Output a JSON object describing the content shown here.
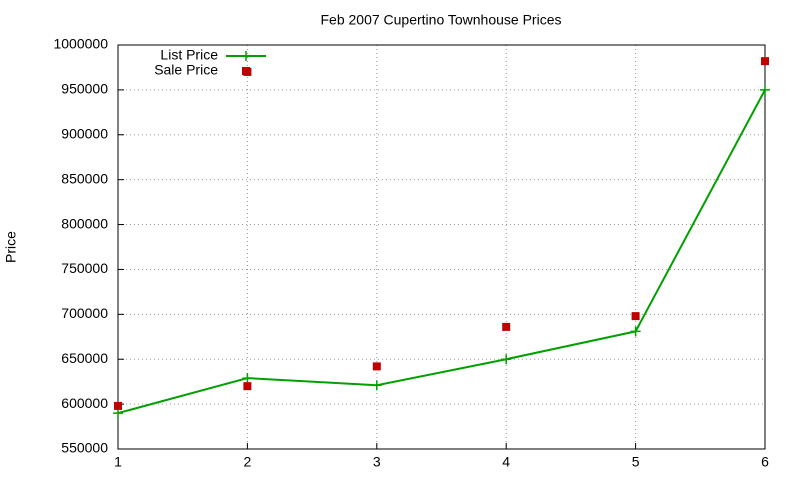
{
  "chart_data": {
    "type": "line",
    "title": "Feb 2007 Cupertino Townhouse Prices",
    "ylabel": "Price",
    "xlim": [
      1,
      6
    ],
    "xticks": [
      1,
      2,
      3,
      4,
      5,
      6
    ],
    "ylim": [
      550000,
      1000000
    ],
    "yticks": [
      550000,
      600000,
      650000,
      700000,
      750000,
      800000,
      850000,
      900000,
      950000,
      1000000
    ],
    "grid": true,
    "legend": "top-left",
    "series": [
      {
        "name": "List Price",
        "type": "line",
        "color": "#00a000",
        "x": [
          1,
          2,
          3,
          4,
          5,
          6
        ],
        "values": [
          590000,
          629000,
          621000,
          650000,
          681000,
          950000
        ]
      },
      {
        "name": "Sale Price",
        "type": "scatter",
        "color": "#c00000",
        "x": [
          1,
          2,
          2,
          3,
          4,
          5,
          6
        ],
        "values": [
          598000,
          620000,
          970000,
          642000,
          686000,
          698000,
          982000
        ]
      }
    ]
  }
}
